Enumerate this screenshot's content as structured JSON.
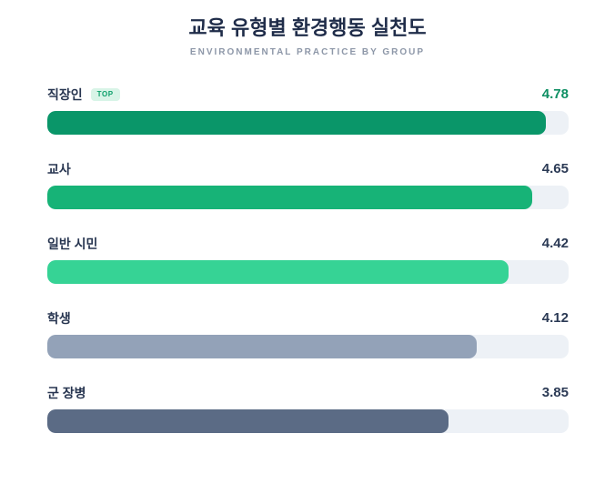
{
  "header": {
    "title": "교육 유형별 환경행동 실천도",
    "subtitle": "ENVIRONMENTAL PRACTICE BY GROUP"
  },
  "colors": {
    "title_text": "#1f2c49",
    "subtitle_text": "#8d97a8",
    "label_text": "#273550",
    "value_text": "#2b3a55",
    "top_value_text": "#0e8f63",
    "badge_bg": "#d8f4e7",
    "badge_text": "#0da06b",
    "track_bg": "#edf1f6"
  },
  "chart_data": {
    "type": "bar",
    "orientation": "horizontal",
    "title": "교육 유형별 환경행동 실천도",
    "subtitle": "ENVIRONMENTAL PRACTICE BY GROUP",
    "value_range": [
      0,
      5
    ],
    "grid": false,
    "legend": false,
    "categories": [
      "직장인",
      "교사",
      "일반 시민",
      "학생",
      "군 장병"
    ],
    "values": [
      4.78,
      4.65,
      4.42,
      4.12,
      3.85
    ],
    "value_labels": [
      "4.78",
      "4.65",
      "4.42",
      "4.12",
      "3.85"
    ],
    "bar_colors": [
      "#0a9669",
      "#17b377",
      "#36d395",
      "#93a2b8",
      "#5b6b85"
    ],
    "top_row_index": 0,
    "top_badge_label": "TOP"
  }
}
